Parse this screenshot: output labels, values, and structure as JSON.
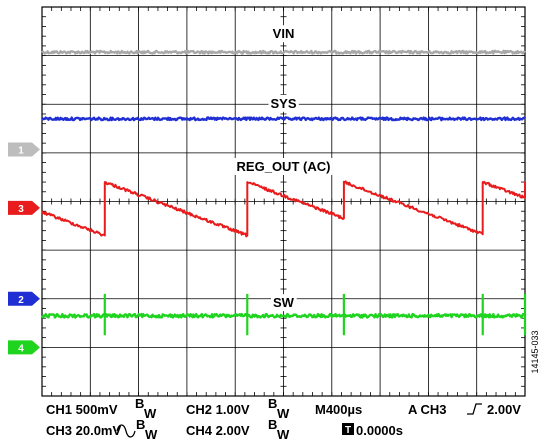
{
  "chart_data": {
    "type": "line",
    "title": "",
    "xlabel": "",
    "ylabel": "",
    "grid": true,
    "grid_divisions": {
      "x": 10,
      "y": 8
    },
    "x": [
      0,
      4000
    ],
    "x_unit": "µs",
    "series": [
      {
        "name": "VIN",
        "channel": "1",
        "color": "#a8a8a8",
        "waveform": "flat",
        "level_div": 0.93
      },
      {
        "name": "SYS",
        "channel": "3",
        "color": "#1f2fd4",
        "waveform": "flat",
        "level_div": 2.3
      },
      {
        "name": "REG_OUT (AC)",
        "channel": "3",
        "color": "#e81c1c",
        "waveform": "sawtooth",
        "high_div": 3.6,
        "low_div": 4.7,
        "rise_times": [
          520,
          1700,
          2500,
          3650,
          4000
        ]
      },
      {
        "name": "SW",
        "channel": "4",
        "color": "#1ed41e",
        "waveform": "spikes",
        "level_div": 6.35,
        "spike_times": [
          520,
          1700,
          2500,
          3650,
          4000
        ],
        "spike_top_div": 5.9,
        "spike_bottom_div": 6.75
      }
    ],
    "channel_markers": [
      {
        "label": "1",
        "color": "#bdbdbd",
        "level_div": 2.93
      },
      {
        "label": "3",
        "color": "#e81c1c",
        "level_div": 4.13
      },
      {
        "label": "2",
        "color": "#1f2fd4",
        "level_div": 6.0
      },
      {
        "label": "4",
        "color": "#1ed41e",
        "level_div": 7.0
      }
    ],
    "annotations": [
      {
        "text": "VIN",
        "target": "VIN"
      },
      {
        "text": "SYS",
        "target": "SYS"
      },
      {
        "text": "REG_OUT (AC)",
        "target": "REG_OUT (AC)"
      },
      {
        "text": "SW",
        "target": "SW"
      }
    ]
  },
  "footer": {
    "ch1": "CH1 500mV",
    "ch2": "CH2 1.00V",
    "ch3": "CH3 20.0mV",
    "ch4": "CH4 2.00V",
    "bw": "B",
    "bw_sub": "W",
    "timebase": "M400µs",
    "trigger": "A  CH3",
    "trigger_level": "2.00V",
    "trigger_position": "0.0000s",
    "trigger_icon_label": "T"
  },
  "figure_id": "14145-033"
}
